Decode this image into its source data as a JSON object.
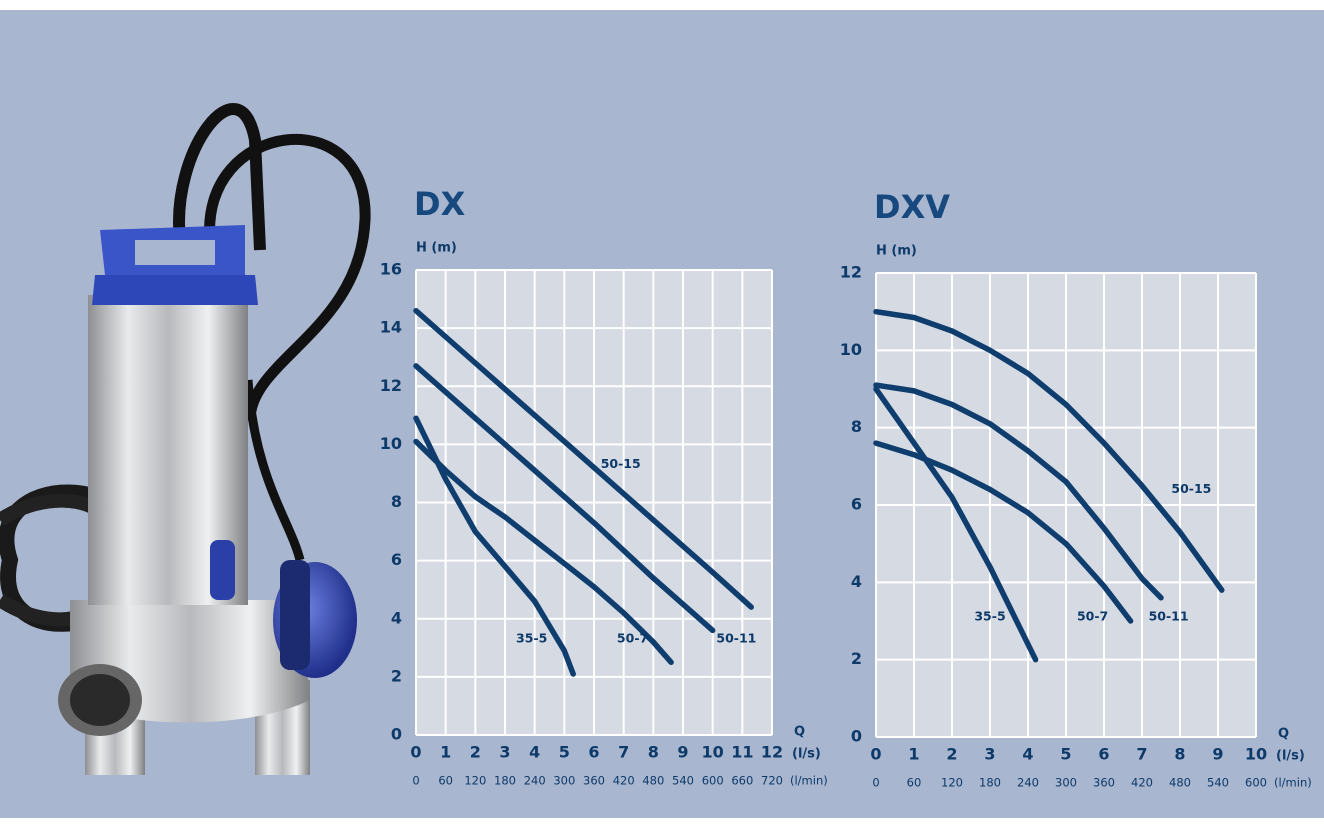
{
  "chart_data": [
    {
      "type": "line",
      "title": "DX",
      "y_label": "H (m)",
      "x_label": "Q",
      "x_unit": "(l/s)",
      "x2_unit": "(l/min)",
      "xlim": [
        0,
        12
      ],
      "xticks": [
        0,
        1,
        2,
        3,
        4,
        5,
        6,
        7,
        8,
        9,
        10,
        11,
        12
      ],
      "x2lim": [
        0,
        720
      ],
      "x2ticks": [
        0,
        60,
        120,
        180,
        240,
        300,
        360,
        420,
        480,
        540,
        600,
        660,
        720
      ],
      "ylim": [
        0,
        16
      ],
      "yticks": [
        0,
        2,
        4,
        6,
        8,
        10,
        12,
        14,
        16
      ],
      "grid": true,
      "series": [
        {
          "name": "35-5",
          "color": "#0f3d6e",
          "x": [
            0,
            1,
            2,
            3,
            4,
            5,
            5.3
          ],
          "values": [
            10.9,
            8.8,
            7.0,
            5.8,
            4.6,
            2.9,
            2.1
          ]
        },
        {
          "name": "50-7",
          "color": "#0f3d6e",
          "x": [
            0,
            1,
            2,
            3,
            4,
            5,
            6,
            7,
            8,
            8.6
          ],
          "values": [
            10.1,
            9.1,
            8.2,
            7.5,
            6.7,
            5.9,
            5.1,
            4.2,
            3.2,
            2.5
          ]
        },
        {
          "name": "50-11",
          "color": "#0f3d6e",
          "x": [
            0,
            2,
            4,
            6,
            8,
            10
          ],
          "values": [
            12.7,
            10.9,
            9.1,
            7.3,
            5.4,
            3.6
          ]
        },
        {
          "name": "50-15",
          "color": "#0f3d6e",
          "x": [
            0,
            2,
            4,
            6,
            8,
            10,
            11.3
          ],
          "values": [
            14.6,
            12.8,
            11.0,
            9.2,
            7.4,
            5.6,
            4.4
          ]
        }
      ]
    },
    {
      "type": "line",
      "title": "DXV",
      "y_label": "H (m)",
      "x_label": "Q",
      "x_unit": "(l/s)",
      "x2_unit": "(l/min)",
      "xlim": [
        0,
        10
      ],
      "xticks": [
        0,
        1,
        2,
        3,
        4,
        5,
        6,
        7,
        8,
        9,
        10
      ],
      "x2lim": [
        0,
        600
      ],
      "x2ticks": [
        0,
        60,
        120,
        180,
        240,
        300,
        360,
        420,
        480,
        540,
        600
      ],
      "ylim": [
        0,
        12
      ],
      "yticks": [
        0,
        2,
        4,
        6,
        8,
        10,
        12
      ],
      "grid": true,
      "series": [
        {
          "name": "35-5",
          "color": "#0f3d6e",
          "x": [
            0,
            1,
            2,
            3,
            4.2
          ],
          "values": [
            9.0,
            7.6,
            6.2,
            4.4,
            2.0
          ]
        },
        {
          "name": "50-7",
          "color": "#0f3d6e",
          "x": [
            0,
            1,
            2,
            3,
            4,
            5,
            6,
            6.7
          ],
          "values": [
            7.6,
            7.3,
            6.9,
            6.4,
            5.8,
            5.0,
            3.9,
            3.0
          ]
        },
        {
          "name": "50-11",
          "color": "#0f3d6e",
          "x": [
            0,
            1,
            2,
            3,
            4,
            5,
            6,
            7,
            7.5
          ],
          "values": [
            9.1,
            8.95,
            8.6,
            8.1,
            7.4,
            6.6,
            5.4,
            4.1,
            3.6
          ]
        },
        {
          "name": "50-15",
          "color": "#0f3d6e",
          "x": [
            0,
            1,
            2,
            3,
            4,
            5,
            6,
            7,
            8,
            9.1
          ],
          "values": [
            11.0,
            10.85,
            10.5,
            10.0,
            9.4,
            8.6,
            7.6,
            6.5,
            5.3,
            3.8
          ]
        }
      ]
    }
  ]
}
